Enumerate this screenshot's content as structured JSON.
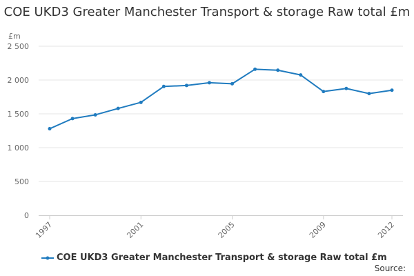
{
  "chart_data": {
    "type": "line",
    "title": "COE UKD3 Greater Manchester Transport & storage Raw total £m",
    "unit_label": "£m",
    "x": [
      1997,
      1998,
      1999,
      2000,
      2001,
      2002,
      2003,
      2004,
      2005,
      2006,
      2007,
      2008,
      2009,
      2010,
      2011,
      2012
    ],
    "x_tick_labels": [
      "1997",
      "2001",
      "2005",
      "2009",
      "2012"
    ],
    "y_tick_labels": [
      "0",
      "500",
      "1 000",
      "1 500",
      "2 000",
      "2 500"
    ],
    "ylim": [
      0,
      2500
    ],
    "xlim": [
      1997,
      2012
    ],
    "series": [
      {
        "name": "COE UKD3 Greater Manchester Transport & storage Raw total £m",
        "color": "#1f7bbf",
        "values": [
          1280,
          1430,
          1485,
          1580,
          1670,
          1905,
          1920,
          1960,
          1945,
          2160,
          2145,
          2075,
          1830,
          1875,
          1800,
          1850
        ]
      }
    ],
    "grid": true,
    "legend_position": "bottom-left"
  },
  "source_label": "Source:"
}
